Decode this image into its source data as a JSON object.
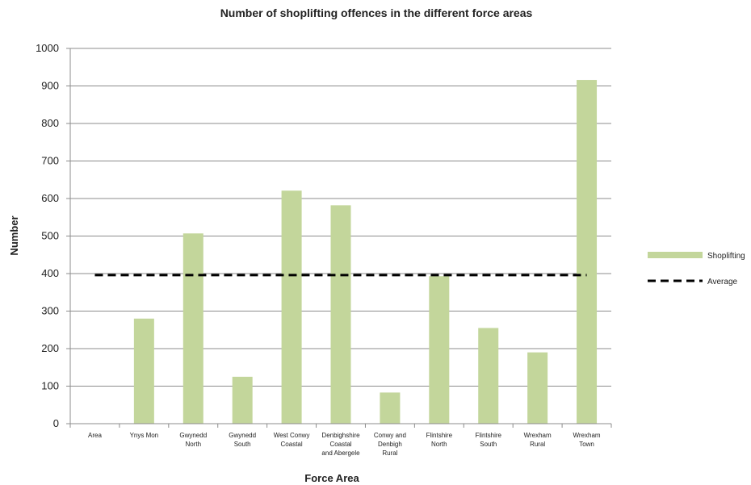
{
  "chart_data": {
    "type": "bar",
    "title": "Number of shoplifting offences in the different force areas",
    "xlabel": "Force Area",
    "ylabel": "Number",
    "ylim": [
      0,
      1000
    ],
    "yticks": [
      0,
      100,
      200,
      300,
      400,
      500,
      600,
      700,
      800,
      900,
      1000
    ],
    "grid": true,
    "legend_position": "right",
    "categories": [
      [
        "Area"
      ],
      [
        "Ynys Mon"
      ],
      [
        "Gwynedd",
        "North"
      ],
      [
        "Gwynedd",
        "South"
      ],
      [
        "West Conwy",
        "Coastal"
      ],
      [
        "Denbighshire",
        "Coastal",
        "and Abergele"
      ],
      [
        "Conwy and",
        "Denbigh",
        "Rural"
      ],
      [
        "Flintshire",
        "North"
      ],
      [
        "Flintshire",
        "South"
      ],
      [
        "Wrexham",
        "Rural"
      ],
      [
        "Wrexham",
        "Town"
      ]
    ],
    "series": [
      {
        "name": "Shoplifting",
        "type": "bar",
        "color": "#c3d69b",
        "values": [
          0,
          280,
          507,
          125,
          621,
          582,
          83,
          393,
          255,
          190,
          916
        ]
      },
      {
        "name": "Average",
        "type": "line",
        "style": "dashed",
        "color": "#000000",
        "value": 396
      }
    ]
  }
}
